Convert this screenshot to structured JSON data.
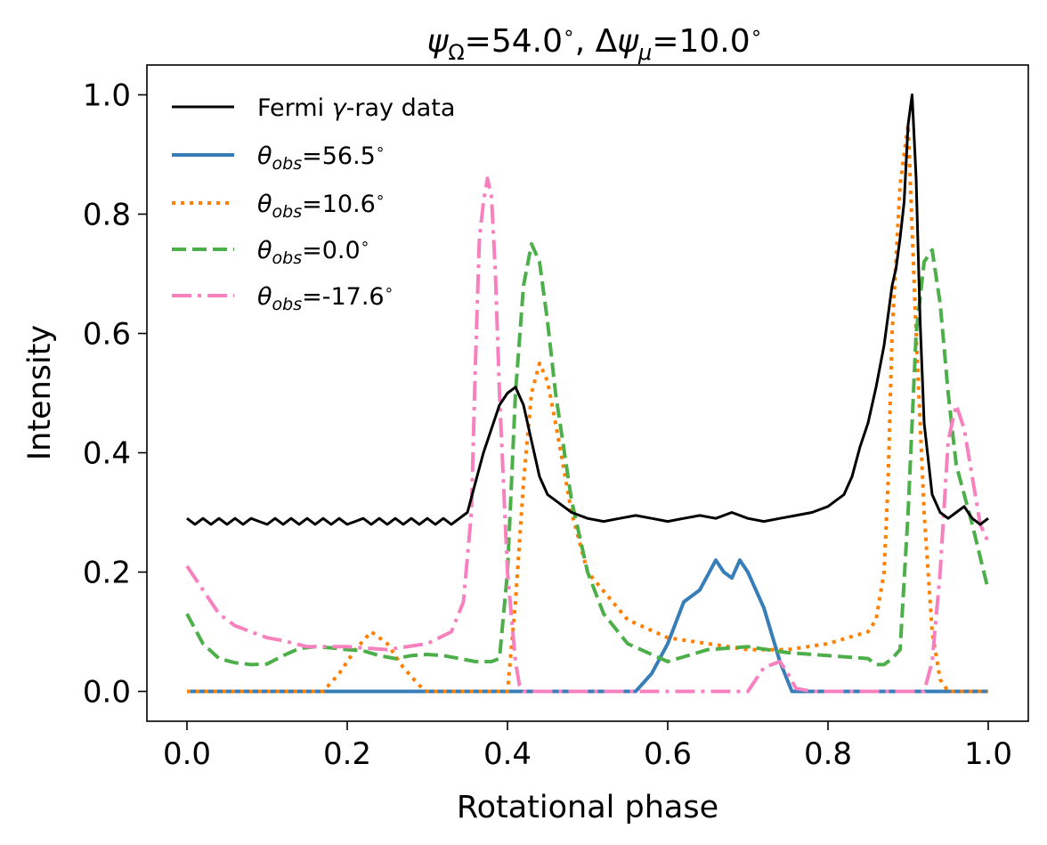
{
  "chart_data": {
    "type": "line",
    "title": {
      "psi_sym": "ψ",
      "psi_sub": "Ω",
      "psi_val": "=54.0",
      "deg": "∘",
      "sep": ", Δ",
      "dpsi_sym": "ψ",
      "dpsi_sub": "μ",
      "dpsi_val": "=10.0"
    },
    "xlabel": "Rotational phase",
    "ylabel": "Intensity",
    "xlim": [
      -0.05,
      1.05
    ],
    "ylim": [
      -0.05,
      1.05
    ],
    "xticks": [
      0.0,
      0.2,
      0.4,
      0.6,
      0.8,
      1.0
    ],
    "xtick_labels": [
      "0.0",
      "0.2",
      "0.4",
      "0.6",
      "0.8",
      "1.0"
    ],
    "yticks": [
      0.0,
      0.2,
      0.4,
      0.6,
      0.8,
      1.0
    ],
    "ytick_labels": [
      "0.0",
      "0.2",
      "0.4",
      "0.6",
      "0.8",
      "1.0"
    ],
    "grid": false,
    "legend_position": "top-left",
    "series": [
      {
        "name": "Fermi γ-ray data",
        "legend": {
          "pre": "Fermi ",
          "sym": "γ",
          "post": "-ray data"
        },
        "color": "#000000",
        "style": "solid",
        "x": [
          0.0,
          0.01,
          0.02,
          0.03,
          0.04,
          0.05,
          0.06,
          0.07,
          0.08,
          0.09,
          0.1,
          0.11,
          0.12,
          0.13,
          0.14,
          0.15,
          0.16,
          0.17,
          0.18,
          0.19,
          0.2,
          0.21,
          0.22,
          0.23,
          0.24,
          0.25,
          0.26,
          0.27,
          0.28,
          0.29,
          0.3,
          0.31,
          0.32,
          0.33,
          0.34,
          0.35,
          0.36,
          0.37,
          0.38,
          0.39,
          0.4,
          0.41,
          0.42,
          0.43,
          0.44,
          0.45,
          0.46,
          0.47,
          0.48,
          0.5,
          0.52,
          0.54,
          0.56,
          0.58,
          0.6,
          0.62,
          0.64,
          0.66,
          0.68,
          0.7,
          0.72,
          0.74,
          0.76,
          0.78,
          0.8,
          0.81,
          0.82,
          0.83,
          0.84,
          0.85,
          0.86,
          0.87,
          0.875,
          0.88,
          0.885,
          0.89,
          0.895,
          0.9,
          0.905,
          0.91,
          0.915,
          0.92,
          0.93,
          0.94,
          0.95,
          0.96,
          0.97,
          0.98,
          0.99,
          1.0
        ],
        "y": [
          0.29,
          0.28,
          0.29,
          0.28,
          0.29,
          0.28,
          0.29,
          0.28,
          0.29,
          0.285,
          0.28,
          0.29,
          0.28,
          0.29,
          0.28,
          0.29,
          0.28,
          0.29,
          0.28,
          0.29,
          0.28,
          0.285,
          0.29,
          0.28,
          0.29,
          0.28,
          0.29,
          0.28,
          0.29,
          0.28,
          0.29,
          0.28,
          0.29,
          0.28,
          0.29,
          0.3,
          0.35,
          0.4,
          0.44,
          0.48,
          0.5,
          0.51,
          0.48,
          0.42,
          0.36,
          0.33,
          0.32,
          0.31,
          0.3,
          0.29,
          0.285,
          0.29,
          0.295,
          0.29,
          0.285,
          0.29,
          0.295,
          0.29,
          0.3,
          0.29,
          0.285,
          0.29,
          0.295,
          0.3,
          0.31,
          0.32,
          0.33,
          0.36,
          0.41,
          0.45,
          0.51,
          0.58,
          0.63,
          0.68,
          0.71,
          0.76,
          0.82,
          0.95,
          1.0,
          0.86,
          0.62,
          0.45,
          0.33,
          0.3,
          0.29,
          0.3,
          0.31,
          0.29,
          0.28,
          0.29
        ]
      },
      {
        "name": "θobs=56.5°",
        "legend": {
          "sym": "θ",
          "sub": "obs",
          "val": "=56.5"
        },
        "color": "#377eb8",
        "style": "solid",
        "x": [
          0.0,
          0.56,
          0.58,
          0.6,
          0.62,
          0.64,
          0.66,
          0.67,
          0.68,
          0.69,
          0.7,
          0.72,
          0.74,
          0.755,
          1.0
        ],
        "y": [
          0.0,
          0.0,
          0.03,
          0.08,
          0.15,
          0.17,
          0.22,
          0.2,
          0.19,
          0.22,
          0.2,
          0.14,
          0.05,
          0.0,
          0.0
        ]
      },
      {
        "name": "θobs=10.6°",
        "legend": {
          "sym": "θ",
          "sub": "obs",
          "val": "=10.6"
        },
        "color": "#ff7f00",
        "style": "dotted",
        "x": [
          0.0,
          0.17,
          0.19,
          0.21,
          0.23,
          0.25,
          0.27,
          0.29,
          0.3,
          0.4,
          0.41,
          0.42,
          0.43,
          0.44,
          0.45,
          0.46,
          0.48,
          0.5,
          0.55,
          0.6,
          0.65,
          0.7,
          0.75,
          0.8,
          0.85,
          0.86,
          0.87,
          0.875,
          0.88,
          0.89,
          0.9,
          0.91,
          0.92,
          0.93,
          0.94,
          0.95,
          1.0
        ],
        "y": [
          0.0,
          0.0,
          0.03,
          0.07,
          0.1,
          0.08,
          0.04,
          0.01,
          0.0,
          0.0,
          0.15,
          0.35,
          0.5,
          0.55,
          0.52,
          0.45,
          0.3,
          0.2,
          0.12,
          0.09,
          0.08,
          0.07,
          0.07,
          0.08,
          0.1,
          0.12,
          0.2,
          0.35,
          0.6,
          0.85,
          0.95,
          0.6,
          0.3,
          0.1,
          0.02,
          0.0,
          0.0
        ]
      },
      {
        "name": "θobs=0.0°",
        "legend": {
          "sym": "θ",
          "sub": "obs",
          "val": "=0.0"
        },
        "color": "#4daf4a",
        "style": "dashed",
        "x": [
          0.0,
          0.02,
          0.04,
          0.06,
          0.08,
          0.1,
          0.12,
          0.14,
          0.16,
          0.18,
          0.2,
          0.22,
          0.24,
          0.26,
          0.28,
          0.3,
          0.32,
          0.34,
          0.36,
          0.38,
          0.39,
          0.4,
          0.41,
          0.42,
          0.43,
          0.44,
          0.45,
          0.46,
          0.48,
          0.5,
          0.52,
          0.55,
          0.6,
          0.65,
          0.7,
          0.75,
          0.8,
          0.85,
          0.86,
          0.87,
          0.88,
          0.89,
          0.9,
          0.91,
          0.92,
          0.93,
          0.94,
          0.95,
          0.96,
          0.98,
          1.0
        ],
        "y": [
          0.13,
          0.08,
          0.055,
          0.048,
          0.045,
          0.046,
          0.06,
          0.072,
          0.075,
          0.073,
          0.07,
          0.068,
          0.06,
          0.055,
          0.06,
          0.062,
          0.06,
          0.055,
          0.05,
          0.05,
          0.055,
          0.2,
          0.5,
          0.68,
          0.75,
          0.72,
          0.62,
          0.5,
          0.32,
          0.2,
          0.13,
          0.08,
          0.05,
          0.07,
          0.075,
          0.065,
          0.06,
          0.055,
          0.045,
          0.045,
          0.055,
          0.07,
          0.3,
          0.6,
          0.72,
          0.74,
          0.65,
          0.5,
          0.38,
          0.28,
          0.17
        ]
      },
      {
        "name": "θobs=-17.6°",
        "legend": {
          "sym": "θ",
          "sub": "obs",
          "val": "=-17.6"
        },
        "color": "#f781bf",
        "style": "dashdot",
        "x": [
          0.0,
          0.02,
          0.04,
          0.06,
          0.08,
          0.1,
          0.12,
          0.15,
          0.2,
          0.25,
          0.3,
          0.33,
          0.345,
          0.355,
          0.36,
          0.365,
          0.37,
          0.375,
          0.38,
          0.385,
          0.39,
          0.4,
          0.41,
          0.415,
          0.42,
          0.7,
          0.72,
          0.74,
          0.75,
          0.76,
          0.78,
          0.92,
          0.93,
          0.94,
          0.95,
          0.96,
          0.97,
          0.98,
          0.99,
          1.0
        ],
        "y": [
          0.21,
          0.17,
          0.13,
          0.11,
          0.1,
          0.09,
          0.085,
          0.075,
          0.075,
          0.07,
          0.08,
          0.1,
          0.15,
          0.3,
          0.55,
          0.76,
          0.82,
          0.86,
          0.83,
          0.7,
          0.5,
          0.2,
          0.05,
          0.01,
          0.0,
          0.0,
          0.04,
          0.05,
          0.03,
          0.005,
          0.0,
          0.0,
          0.05,
          0.2,
          0.42,
          0.48,
          0.44,
          0.36,
          0.28,
          0.25
        ]
      }
    ]
  }
}
